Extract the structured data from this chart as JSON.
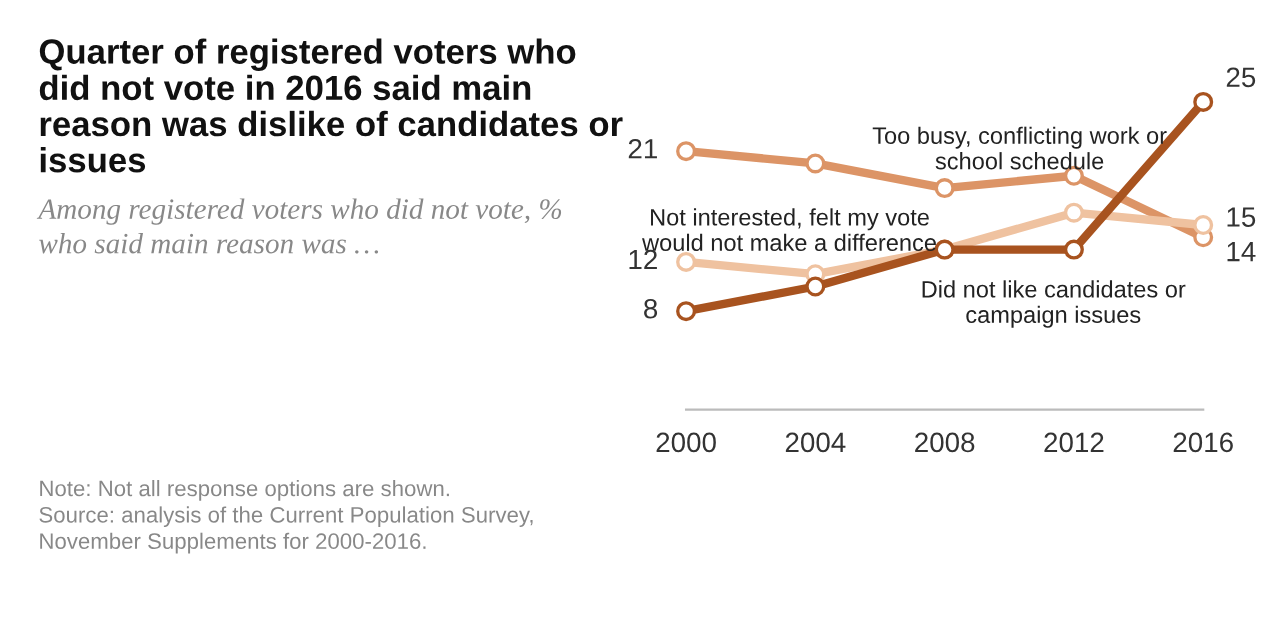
{
  "chart_data": {
    "type": "line",
    "title": "Quarter of registered voters who did not vote in 2016 said main reason was dislike of candidates or issues",
    "subtitle": "Among registered voters who did not vote, % who said main reason was …",
    "x": [
      2000,
      2004,
      2008,
      2012,
      2016
    ],
    "xlim": [
      2000,
      2016
    ],
    "xticks": [
      2000,
      2004,
      2008,
      2012,
      2016
    ],
    "tick_labels": "x",
    "grid": false,
    "legend": false,
    "marker": "circle",
    "line_style": "solid",
    "series": [
      {
        "name": "Too busy, conflicting work or school schedule",
        "color": "#dc9466",
        "values": [
          21,
          20,
          18,
          19,
          14
        ],
        "value_labels": [
          "21",
          null,
          null,
          null,
          "14"
        ]
      },
      {
        "name": "Not interested, felt my vote would not make a difference",
        "color": "#efc2a0",
        "values": [
          12,
          11,
          13,
          16,
          15
        ],
        "value_labels": [
          "12",
          null,
          null,
          null,
          "15"
        ]
      },
      {
        "name": "Did not like candidates or campaign issues",
        "color": "#a8531f",
        "values": [
          8,
          10,
          13,
          13,
          25
        ],
        "value_labels": [
          "8",
          null,
          null,
          null,
          "25"
        ]
      }
    ],
    "annotations": [
      "Note: Not all response options are shown.\nSource: analysis of the Current Population Survey,\nNovember Supplements for 2000-2016."
    ]
  }
}
